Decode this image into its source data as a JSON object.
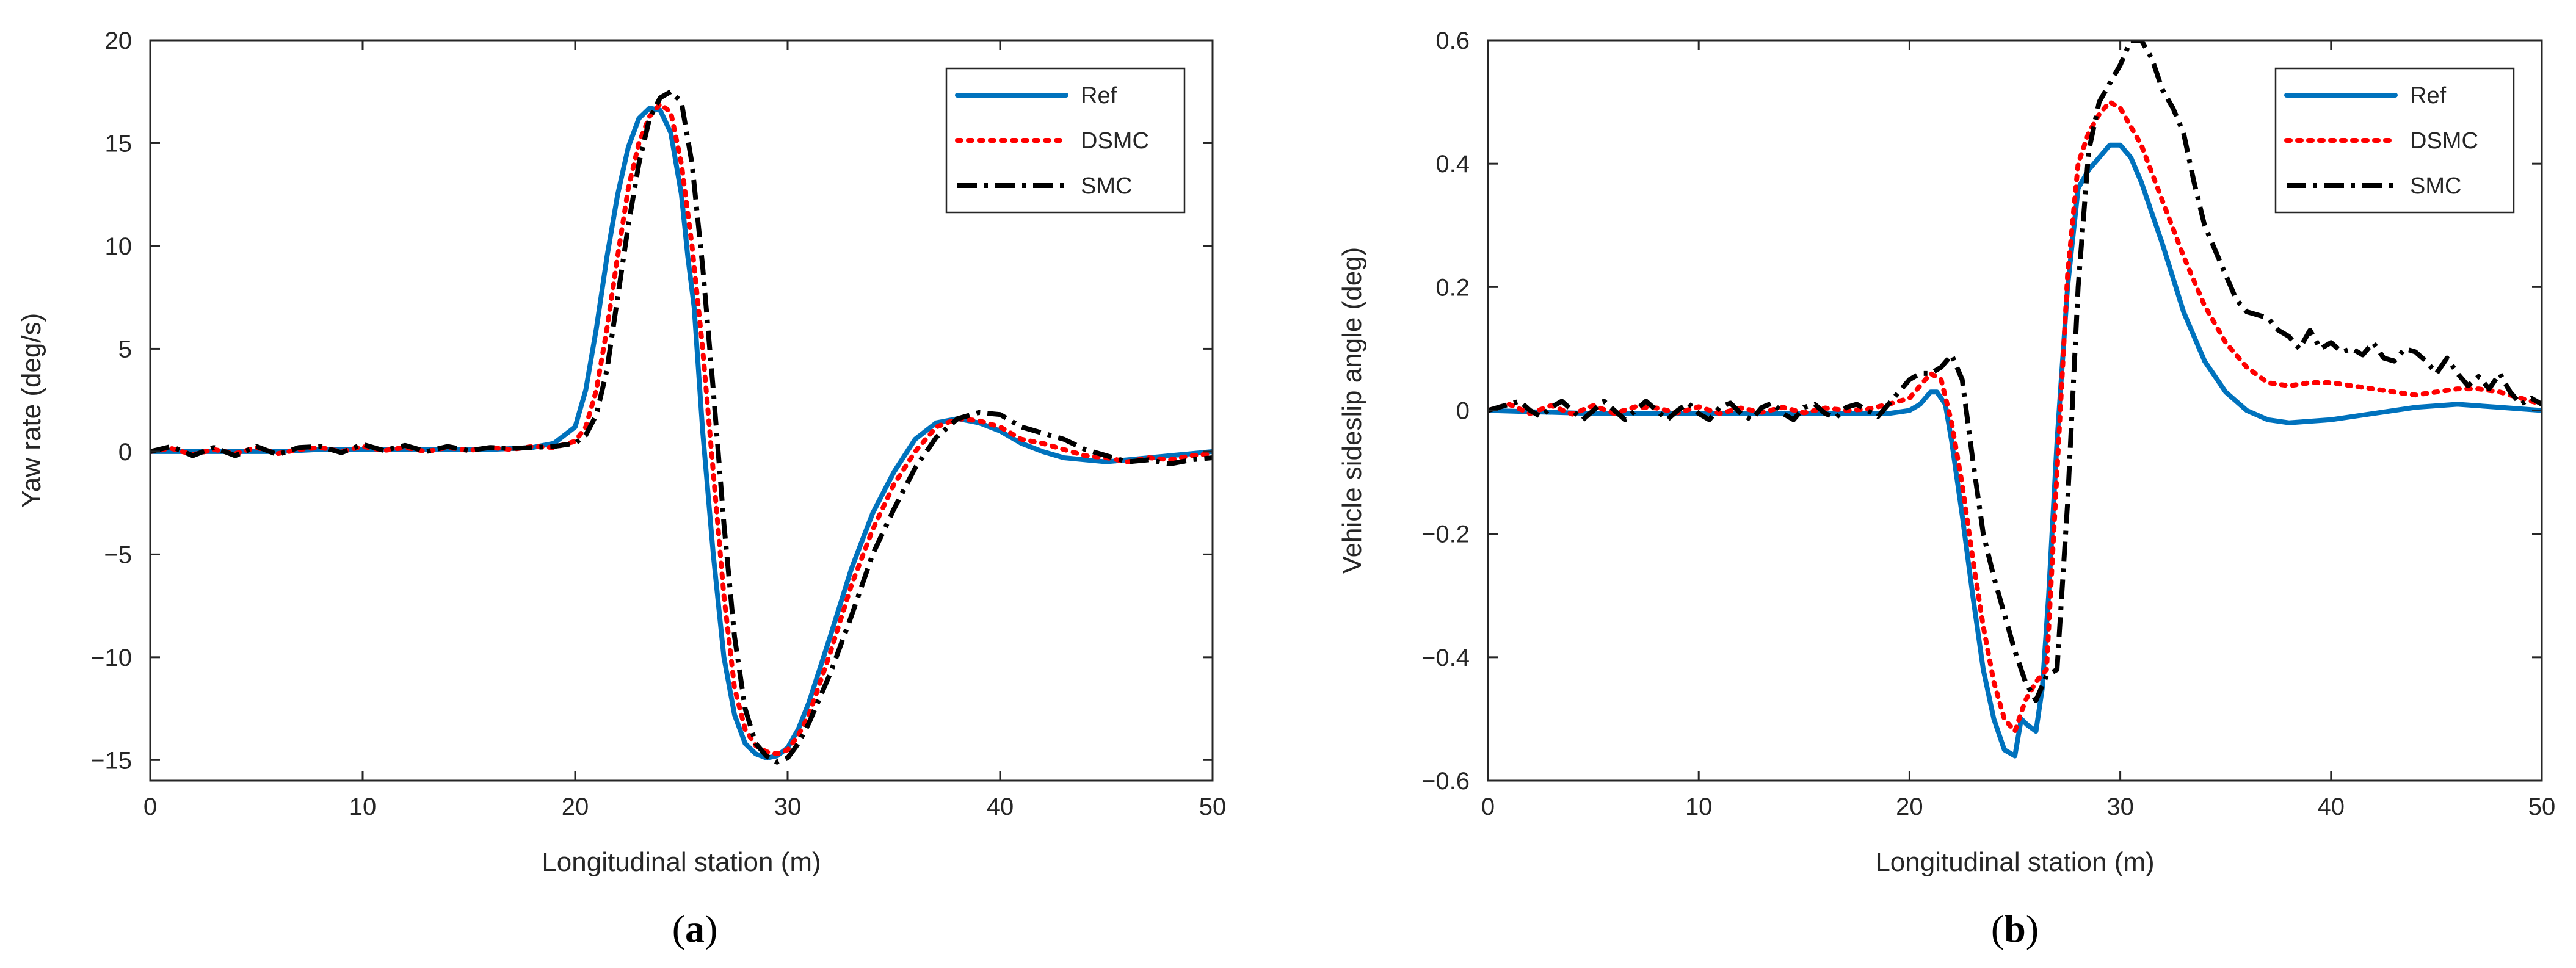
{
  "figure": {
    "panels": [
      "(a)",
      "(b)"
    ]
  },
  "colors": {
    "ref": "#0072BD",
    "dsmc": "#FF0000",
    "smc": "#000000",
    "axis": "#262626"
  },
  "chart_data": [
    {
      "type": "line",
      "panel_label": "(a)",
      "title": "",
      "xlabel": "Longitudinal station (m)",
      "ylabel": "Yaw rate (deg/s)",
      "xlim": [
        0,
        50
      ],
      "ylim": [
        -16,
        20
      ],
      "xticks": [
        0,
        10,
        20,
        30,
        40,
        50
      ],
      "yticks": [
        -15,
        -10,
        -5,
        0,
        5,
        10,
        15,
        20
      ],
      "xtick_labels": [
        "0",
        "10",
        "20",
        "30",
        "40",
        "50"
      ],
      "ytick_labels": [
        "−15",
        "−10",
        "−5",
        "0",
        "5",
        "10",
        "15",
        "20"
      ],
      "grid": false,
      "legend_position": "top-right",
      "series": [
        {
          "name": "Ref",
          "style": "solid",
          "x": [
            0,
            2,
            4,
            6,
            8,
            10,
            12,
            14,
            16,
            18,
            19,
            20,
            20.5,
            21,
            21.5,
            22,
            22.5,
            23,
            23.5,
            24,
            24.5,
            25,
            25.3,
            25.6,
            26,
            26.5,
            27,
            27.5,
            28,
            28.5,
            29,
            29.5,
            30,
            30.5,
            31,
            32,
            33,
            34,
            35,
            36,
            37,
            38,
            39,
            40,
            41,
            42,
            43,
            44,
            45,
            46,
            47,
            48,
            49,
            50
          ],
          "y": [
            0,
            0,
            0,
            0,
            0.1,
            0.1,
            0.1,
            0.1,
            0.1,
            0.2,
            0.4,
            1.2,
            3,
            6,
            9.5,
            12.5,
            14.8,
            16.2,
            16.7,
            16.6,
            15.5,
            12.5,
            9.5,
            7,
            1,
            -5,
            -10,
            -12.8,
            -14.2,
            -14.7,
            -14.9,
            -14.8,
            -14.4,
            -13.5,
            -12.2,
            -9,
            -5.7,
            -3,
            -1,
            0.6,
            1.4,
            1.6,
            1.4,
            1,
            0.4,
            0,
            -0.3,
            -0.4,
            -0.5,
            -0.4,
            -0.3,
            -0.2,
            -0.1,
            0
          ]
        },
        {
          "name": "DSMC",
          "style": "dotted",
          "x": [
            0,
            1,
            2,
            3,
            4,
            5,
            6,
            7,
            8,
            9,
            10,
            11,
            12,
            13,
            14,
            15,
            16,
            17,
            18,
            19,
            20,
            20.5,
            21,
            21.5,
            22,
            22.5,
            23,
            23.5,
            24,
            24.5,
            25,
            25.5,
            26,
            26.5,
            27,
            27.5,
            28,
            28.5,
            29,
            29.5,
            30,
            30.5,
            31,
            32,
            33,
            34,
            35,
            36,
            37,
            38,
            39,
            40,
            41,
            42,
            43,
            44,
            45,
            46,
            47,
            48,
            49,
            50
          ],
          "y": [
            0,
            0.15,
            -0.15,
            0.1,
            -0.1,
            0.2,
            -0.1,
            0.1,
            0.2,
            0,
            0.25,
            0.05,
            0.2,
            0,
            0.2,
            0.05,
            0.2,
            0.1,
            0.25,
            0.2,
            0.5,
            1.2,
            3,
            6,
            9.5,
            12.8,
            15,
            16.3,
            16.9,
            16.5,
            14,
            10,
            5,
            -1,
            -7,
            -11.5,
            -13.5,
            -14.3,
            -14.6,
            -14.7,
            -14.5,
            -13.8,
            -12.8,
            -9.8,
            -6.5,
            -3.8,
            -1.6,
            0,
            1.2,
            1.6,
            1.5,
            1.2,
            0.6,
            0.4,
            0.1,
            -0.2,
            -0.3,
            -0.5,
            -0.3,
            -0.4,
            -0.2,
            -0.1
          ]
        },
        {
          "name": "SMC",
          "style": "dashdot",
          "x": [
            0,
            1,
            2,
            3,
            4,
            5,
            6,
            7,
            8,
            9,
            10,
            11,
            12,
            13,
            14,
            15,
            16,
            17,
            18,
            19,
            20,
            20.5,
            21,
            21.5,
            22,
            22.5,
            23,
            23.5,
            24,
            24.5,
            25,
            25.5,
            26,
            26.5,
            27,
            27.5,
            28,
            28.5,
            29,
            29.5,
            30,
            30.5,
            31,
            32,
            33,
            34,
            35,
            36,
            37,
            38,
            39,
            40,
            41,
            42,
            43,
            44,
            45,
            46,
            47,
            48,
            49,
            50
          ],
          "y": [
            0,
            0.25,
            -0.2,
            0.2,
            -0.2,
            0.25,
            -0.15,
            0.2,
            0.25,
            -0.05,
            0.35,
            0.05,
            0.3,
            0,
            0.25,
            0.05,
            0.2,
            0.15,
            0.2,
            0.25,
            0.4,
            0.8,
            1.8,
            4,
            7.5,
            11,
            14,
            16.2,
            17.2,
            17.5,
            17,
            14,
            9,
            3,
            -3.5,
            -9,
            -12.5,
            -14.2,
            -14.8,
            -15.1,
            -14.9,
            -14.2,
            -13.2,
            -10.8,
            -8,
            -5,
            -2.8,
            -0.8,
            0.7,
            1.6,
            1.9,
            1.8,
            1.2,
            0.9,
            0.6,
            0.1,
            -0.2,
            -0.5,
            -0.4,
            -0.6,
            -0.4,
            -0.3
          ]
        }
      ]
    },
    {
      "type": "line",
      "panel_label": "(b)",
      "title": "",
      "xlabel": "Longitudinal station (m)",
      "ylabel": "Vehicle sideslip angle (deg)",
      "xlim": [
        0,
        50
      ],
      "ylim": [
        -0.6,
        0.6
      ],
      "xticks": [
        0,
        10,
        20,
        30,
        40,
        50
      ],
      "yticks": [
        -0.6,
        -0.4,
        -0.2,
        0,
        0.2,
        0.4,
        0.6
      ],
      "xtick_labels": [
        "0",
        "10",
        "20",
        "30",
        "40",
        "50"
      ],
      "ytick_labels": [
        "−0.6",
        "−0.4",
        "−0.2",
        "0",
        "0.2",
        "0.4",
        "0.6"
      ],
      "grid": false,
      "legend_position": "top-right",
      "series": [
        {
          "name": "Ref",
          "style": "solid",
          "x": [
            0,
            5,
            10,
            15,
            18,
            19,
            20,
            20.5,
            21,
            21.3,
            21.7,
            22,
            22.5,
            23,
            23.5,
            24,
            24.5,
            25,
            25.3,
            25.6,
            26,
            26.3,
            26.6,
            27,
            27.5,
            28,
            28.5,
            29,
            29.5,
            30,
            30.5,
            31,
            32,
            33,
            34,
            35,
            36,
            37,
            38,
            40,
            42,
            44,
            46,
            48,
            50
          ],
          "y": [
            0,
            -0.005,
            -0.005,
            -0.005,
            -0.005,
            -0.005,
            0,
            0.01,
            0.03,
            0.03,
            0.01,
            -0.05,
            -0.17,
            -0.3,
            -0.42,
            -0.5,
            -0.55,
            -0.56,
            -0.5,
            -0.51,
            -0.52,
            -0.45,
            -0.3,
            -0.05,
            0.2,
            0.36,
            0.39,
            0.41,
            0.43,
            0.43,
            0.41,
            0.37,
            0.27,
            0.16,
            0.08,
            0.03,
            0,
            -0.015,
            -0.02,
            -0.015,
            -0.005,
            0.005,
            0.01,
            0.005,
            0
          ]
        },
        {
          "name": "DSMC",
          "style": "dotted",
          "x": [
            0,
            1,
            2,
            3,
            4,
            5,
            6,
            7,
            8,
            9,
            10,
            11,
            12,
            13,
            14,
            15,
            16,
            17,
            18,
            19,
            20,
            20.5,
            21,
            21.5,
            22,
            22.5,
            23,
            23.5,
            24,
            24.5,
            25,
            25.5,
            26,
            26.5,
            27,
            27.5,
            28,
            28.5,
            29,
            29.5,
            30,
            30.5,
            31,
            32,
            33,
            34,
            35,
            36,
            37,
            38,
            39,
            40,
            41,
            42,
            43,
            44,
            45,
            46,
            47,
            48,
            49,
            50
          ],
          "y": [
            0,
            0.01,
            -0.005,
            0.008,
            -0.006,
            0.008,
            -0.005,
            0.006,
            0.004,
            -0.004,
            0.006,
            -0.005,
            0.004,
            -0.003,
            0.005,
            -0.004,
            0.004,
            0,
            0.002,
            0.01,
            0.02,
            0.04,
            0.06,
            0.05,
            -0.02,
            -0.12,
            -0.24,
            -0.35,
            -0.44,
            -0.5,
            -0.52,
            -0.47,
            -0.44,
            -0.42,
            -0.1,
            0.22,
            0.4,
            0.45,
            0.48,
            0.5,
            0.49,
            0.46,
            0.43,
            0.34,
            0.25,
            0.17,
            0.11,
            0.07,
            0.045,
            0.04,
            0.045,
            0.045,
            0.04,
            0.035,
            0.03,
            0.025,
            0.03,
            0.035,
            0.035,
            0.03,
            0.02,
            0.01
          ]
        },
        {
          "name": "SMC",
          "style": "dashdot",
          "x": [
            0,
            1,
            1.5,
            2,
            2.5,
            3,
            3.5,
            4,
            4.5,
            5,
            5.5,
            6,
            6.5,
            7,
            7.5,
            8,
            8.5,
            9,
            9.5,
            10,
            10.5,
            11,
            11.5,
            12,
            12.5,
            13,
            13.5,
            14,
            14.5,
            15,
            15.5,
            16,
            16.5,
            17,
            17.5,
            18,
            18.5,
            19,
            19.5,
            20,
            20.5,
            21,
            21.5,
            22,
            22.5,
            23,
            23.5,
            24,
            24.5,
            25,
            25.5,
            26,
            26.5,
            27,
            27.5,
            28,
            28.5,
            29,
            29.5,
            30,
            30.5,
            31,
            31.5,
            32,
            32.5,
            33,
            33.5,
            34,
            34.5,
            35,
            35.5,
            36,
            36.5,
            37,
            37.5,
            38,
            38.5,
            39,
            39.5,
            40,
            40.5,
            41,
            41.5,
            42,
            42.5,
            43,
            43.5,
            44,
            44.5,
            45,
            45.5,
            46,
            46.5,
            47,
            47.5,
            48,
            48.5,
            49,
            49.5,
            50
          ],
          "y": [
            0,
            0.01,
            0.015,
            0,
            -0.01,
            0.005,
            0.015,
            0,
            -0.015,
            0,
            0.015,
            0,
            -0.015,
            0,
            0.015,
            0,
            -0.015,
            0,
            0.012,
            -0.005,
            -0.015,
            0.005,
            0.012,
            -0.005,
            -0.015,
            0.005,
            0.012,
            -0.005,
            -0.015,
            0.005,
            0.01,
            -0.005,
            -0.012,
            0.005,
            0.01,
            0,
            -0.01,
            0.01,
            0.03,
            0.05,
            0.06,
            0.06,
            0.07,
            0.09,
            0.05,
            -0.08,
            -0.2,
            -0.27,
            -0.33,
            -0.39,
            -0.44,
            -0.47,
            -0.43,
            -0.42,
            -0.15,
            0.2,
            0.42,
            0.5,
            0.53,
            0.56,
            0.6,
            0.6,
            0.57,
            0.52,
            0.49,
            0.45,
            0.37,
            0.3,
            0.26,
            0.22,
            0.18,
            0.16,
            0.155,
            0.15,
            0.13,
            0.12,
            0.1,
            0.13,
            0.1,
            0.11,
            0.095,
            0.1,
            0.09,
            0.11,
            0.085,
            0.08,
            0.1,
            0.095,
            0.08,
            0.06,
            0.085,
            0.06,
            0.04,
            0.055,
            0.035,
            0.06,
            0.03,
            0.01,
            0.02,
            0.01
          ]
        }
      ]
    }
  ]
}
